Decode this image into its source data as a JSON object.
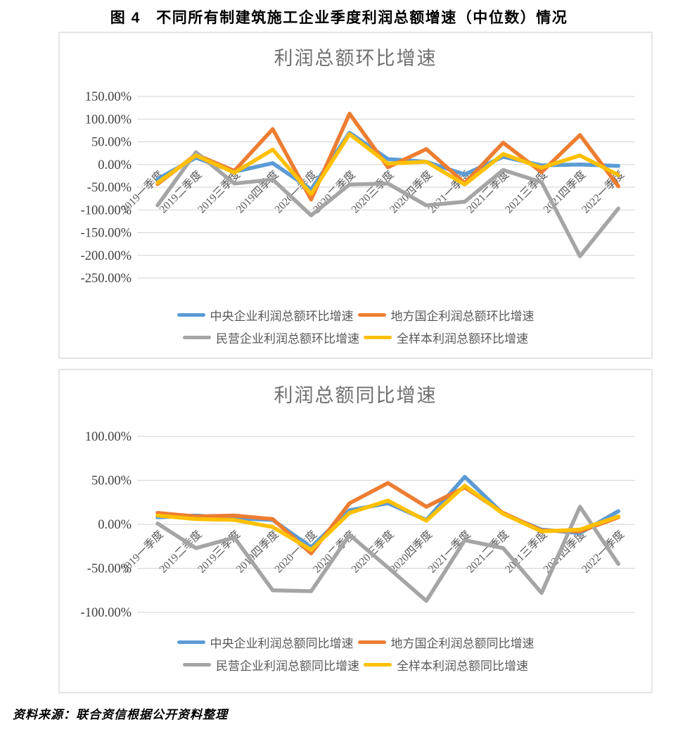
{
  "title": "图 4　不同所有制建筑施工企业季度利润总额增速（中位数）情况",
  "source": "资料来源：联合资信根据公开资料整理",
  "colors": {
    "central_blue": "#5B9BD5",
    "local_soe_orange": "#ED7D31",
    "private_gray": "#A5A5A5",
    "full_sample_yellow": "#FFC000",
    "gridline": "#D9D9D9",
    "axis_text": "#595959",
    "chart_title_text": "#6F6F6F"
  },
  "chart_data": [
    {
      "type": "line",
      "title": "利润总额环比增速",
      "xlabel": "",
      "ylabel": "",
      "grid": true,
      "legend_position": "bottom",
      "ylim": [
        -250,
        150
      ],
      "y_ticks": [
        {
          "label": "150.00%",
          "value": 150
        },
        {
          "label": "100.00%",
          "value": 100
        },
        {
          "label": "50.00%",
          "value": 50
        },
        {
          "label": "0.00%",
          "value": 0
        },
        {
          "label": "-50.00%",
          "value": -50
        },
        {
          "label": "-100.00%",
          "value": -100
        },
        {
          "label": "-150.00%",
          "value": -150
        },
        {
          "label": "-200.00%",
          "value": -200
        },
        {
          "label": "-250.00%",
          "value": -250
        }
      ],
      "categories": [
        "2019一季度",
        "2019二季度",
        "2019三季度",
        "2019四季度",
        "2020一季度",
        "2020二季度",
        "2020三季度",
        "2020四季度",
        "2021一季度",
        "2021二季度",
        "2021三季度",
        "2021四季度",
        "2022一季度"
      ],
      "series": [
        {
          "name": "中央企业利润总额环比增速",
          "color": "#5B9BD5",
          "values": [
            -32,
            15,
            -16,
            3,
            -55,
            70,
            12,
            6,
            -22,
            17,
            -2,
            0,
            -3
          ]
        },
        {
          "name": "地方国企利润总额环比增速",
          "color": "#ED7D31",
          "values": [
            -43,
            22,
            -14,
            78,
            -77,
            112,
            -6,
            34,
            -41,
            48,
            -17,
            65,
            -48
          ]
        },
        {
          "name": "民营企业利润总额环比增速",
          "color": "#A5A5A5",
          "values": [
            -90,
            27,
            -42,
            -33,
            -112,
            -44,
            -42,
            -90,
            -82,
            -12,
            -39,
            -202,
            -97
          ]
        },
        {
          "name": "全样本利润总额环比增速",
          "color": "#FFC000",
          "values": [
            -40,
            20,
            -18,
            33,
            -65,
            67,
            2,
            6,
            -44,
            23,
            -7,
            20,
            -23
          ]
        }
      ]
    },
    {
      "type": "line",
      "title": "利润总额同比增速",
      "xlabel": "",
      "ylabel": "",
      "grid": true,
      "legend_position": "bottom",
      "ylim": [
        -100,
        100
      ],
      "y_ticks": [
        {
          "label": "100.00%",
          "value": 100
        },
        {
          "label": "50.00%",
          "value": 50
        },
        {
          "label": "0.00%",
          "value": 0
        },
        {
          "label": "-50.00%",
          "value": -50
        },
        {
          "label": "-100.00%",
          "value": -100
        }
      ],
      "categories": [
        "2019一季度",
        "2019二季度",
        "2019三季度",
        "2019四季度",
        "2020一季度",
        "2020二季度",
        "2020三季度",
        "2020四季度",
        "2021一季度",
        "2021二季度",
        "2021三季度",
        "2021四季度",
        "2022一季度"
      ],
      "series": [
        {
          "name": "中央企业利润总额同比增速",
          "color": "#5B9BD5",
          "values": [
            8,
            10,
            7,
            5,
            -26,
            16,
            24,
            5,
            54,
            12,
            -6,
            -10,
            15
          ]
        },
        {
          "name": "地方国企利润总额同比增速",
          "color": "#ED7D31",
          "values": [
            13,
            9,
            10,
            6,
            -33,
            24,
            47,
            20,
            42,
            13,
            -7,
            -8,
            8
          ]
        },
        {
          "name": "民营企业利润总额同比增速",
          "color": "#A5A5A5",
          "values": [
            1,
            -27,
            -15,
            -75,
            -76,
            -12,
            -49,
            -87,
            -18,
            -27,
            -78,
            20,
            -45
          ]
        },
        {
          "name": "全样本利润总额同比增速",
          "color": "#FFC000",
          "values": [
            10,
            6,
            5,
            -3,
            -29,
            13,
            27,
            4,
            44,
            12,
            -8,
            -6,
            9
          ]
        }
      ]
    }
  ]
}
